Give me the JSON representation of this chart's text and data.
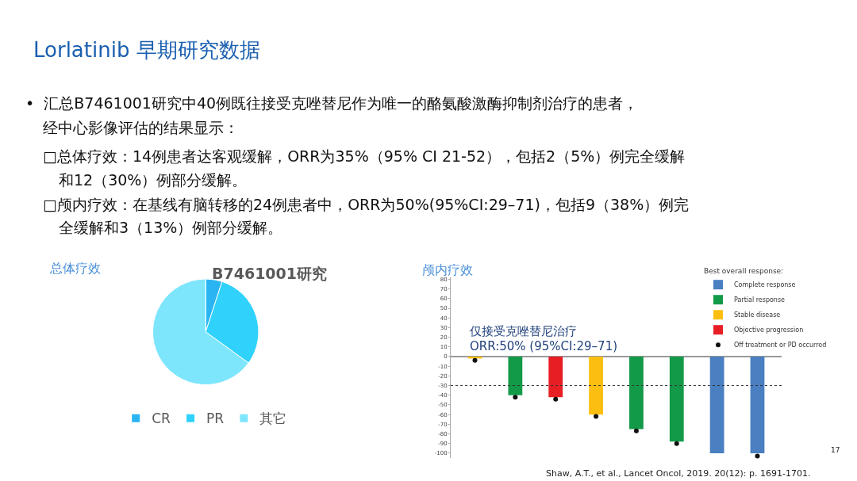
{
  "chart_data": [
    {
      "type": "pie",
      "title": "B7461001研究",
      "categories": [
        "CR",
        "PR",
        "其它"
      ],
      "values": [
        5,
        30,
        65
      ],
      "colors": [
        "#2ab4f2",
        "#30d2fc",
        "#7ee6fc"
      ],
      "legend": "bottom",
      "annotations": [
        "Lorlatinib 早期研究数据",
        "•  汇总B7461001研究中40例既往接受克唑替尼作为唯一的酪氨酸激酶抑制剂治疗的患者，",
        "经中心影像评估的结果显示：",
        "□总体疗效：14例患者达客观缓解，ORR为35%（95% CI 21-52），包括2（5%）例完全缓解",
        "和12（30%）例部分缓解。",
        "□颅内疗效：在基线有脑转移的24例患者中，ORR为50%(95%CI:29–71)，包括9（38%）例完",
        "全缓解和3（13%）例部分缓解。",
        "总体疗效"
      ]
    },
    {
      "type": "bar",
      "categories": [
        null,
        null,
        null,
        null,
        null,
        null,
        null,
        null
      ],
      "legend_title": "Best overall response:",
      "series": [
        {
          "name": "Complete response",
          "color": "#4a7fc1",
          "values": [
            null,
            null,
            null,
            null,
            null,
            null,
            -100,
            -100
          ]
        },
        {
          "name": "Partial response",
          "color": "#139a48",
          "values": [
            null,
            -40,
            null,
            null,
            -75,
            -88,
            null,
            null
          ]
        },
        {
          "name": "Stable disease",
          "color": "#fcbf11",
          "values": [
            -2,
            null,
            null,
            -60,
            null,
            null,
            null,
            null
          ]
        },
        {
          "name": "Objective progression",
          "color": "#e81e25",
          "values": [
            null,
            null,
            -42,
            null,
            null,
            null,
            null,
            null
          ]
        },
        {
          "name": "Off treatment or PD occurred",
          "type": "scatter",
          "marker": "circle",
          "color": "#111111",
          "values": [
            -4,
            -42,
            -44,
            -62,
            -77,
            -90,
            null,
            -103
          ]
        }
      ],
      "ylim": [
        -105,
        82
      ],
      "yticks": [
        -100,
        -90,
        -80,
        -70,
        -60,
        -50,
        -40,
        -30,
        -20,
        -10,
        0,
        10,
        20,
        30,
        40,
        50,
        60,
        70,
        80
      ],
      "ref_lines": [
        {
          "axis": "y",
          "value": -30,
          "line_style": "dotted",
          "color": "#333333"
        }
      ],
      "legend": "top right",
      "tick_labels": "y",
      "annotations": [
        "颅内疗效",
        "仅接受克唑替尼治疗",
        "ORR:50% (95%CI:29–71)",
        "Shaw, A.T., et al., Lancet Oncol, 2019. 20(12): p. 1691-1701.",
        "17"
      ]
    }
  ]
}
